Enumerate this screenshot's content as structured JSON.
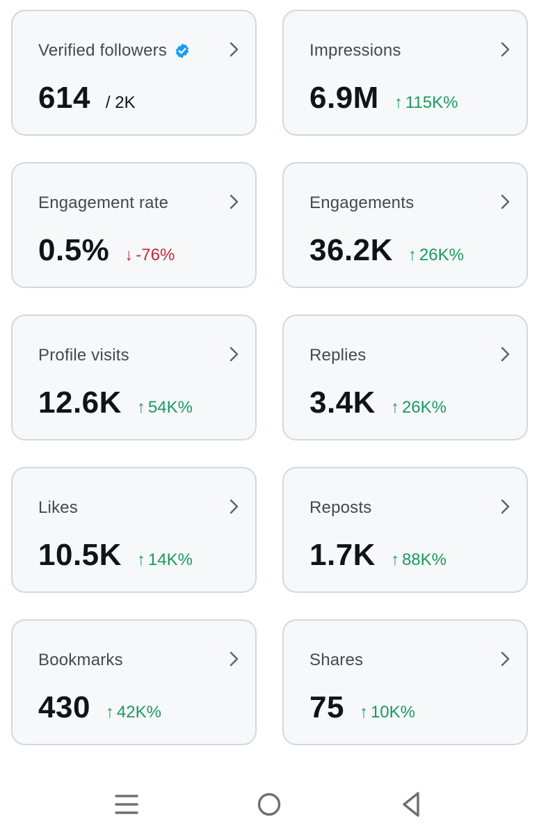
{
  "cards": [
    {
      "label": "Verified followers",
      "value": "614",
      "sub": "/ 2K",
      "change": "",
      "direction": "none",
      "verified": true
    },
    {
      "label": "Impressions",
      "value": "6.9M",
      "sub": "",
      "change": "115K%",
      "direction": "up",
      "verified": false
    },
    {
      "label": "Engagement rate",
      "value": "0.5%",
      "sub": "",
      "change": "-76%",
      "direction": "down",
      "verified": false
    },
    {
      "label": "Engagements",
      "value": "36.2K",
      "sub": "",
      "change": "26K%",
      "direction": "up",
      "verified": false
    },
    {
      "label": "Profile visits",
      "value": "12.6K",
      "sub": "",
      "change": "54K%",
      "direction": "up",
      "verified": false
    },
    {
      "label": "Replies",
      "value": "3.4K",
      "sub": "",
      "change": "26K%",
      "direction": "up",
      "verified": false
    },
    {
      "label": "Likes",
      "value": "10.5K",
      "sub": "",
      "change": "14K%",
      "direction": "up",
      "verified": false
    },
    {
      "label": "Reposts",
      "value": "1.7K",
      "sub": "",
      "change": "88K%",
      "direction": "up",
      "verified": false
    },
    {
      "label": "Bookmarks",
      "value": "430",
      "sub": "",
      "change": "42K%",
      "direction": "up",
      "verified": false
    },
    {
      "label": "Shares",
      "value": "75",
      "sub": "",
      "change": "10K%",
      "direction": "up",
      "verified": false
    }
  ],
  "icons": {
    "verified": "verified-badge-icon",
    "chevron": "chevron-right-icon",
    "up": "arrow-up-icon",
    "down": "arrow-down-icon"
  },
  "colors": {
    "up": "#1a9a5e",
    "down": "#c8243a",
    "verified": "#1d9bf0",
    "card_bg": "#f6f8f9",
    "card_border": "#cfd9de"
  },
  "nav": {
    "recents": "recents-icon",
    "home": "home-icon",
    "back": "back-icon"
  }
}
